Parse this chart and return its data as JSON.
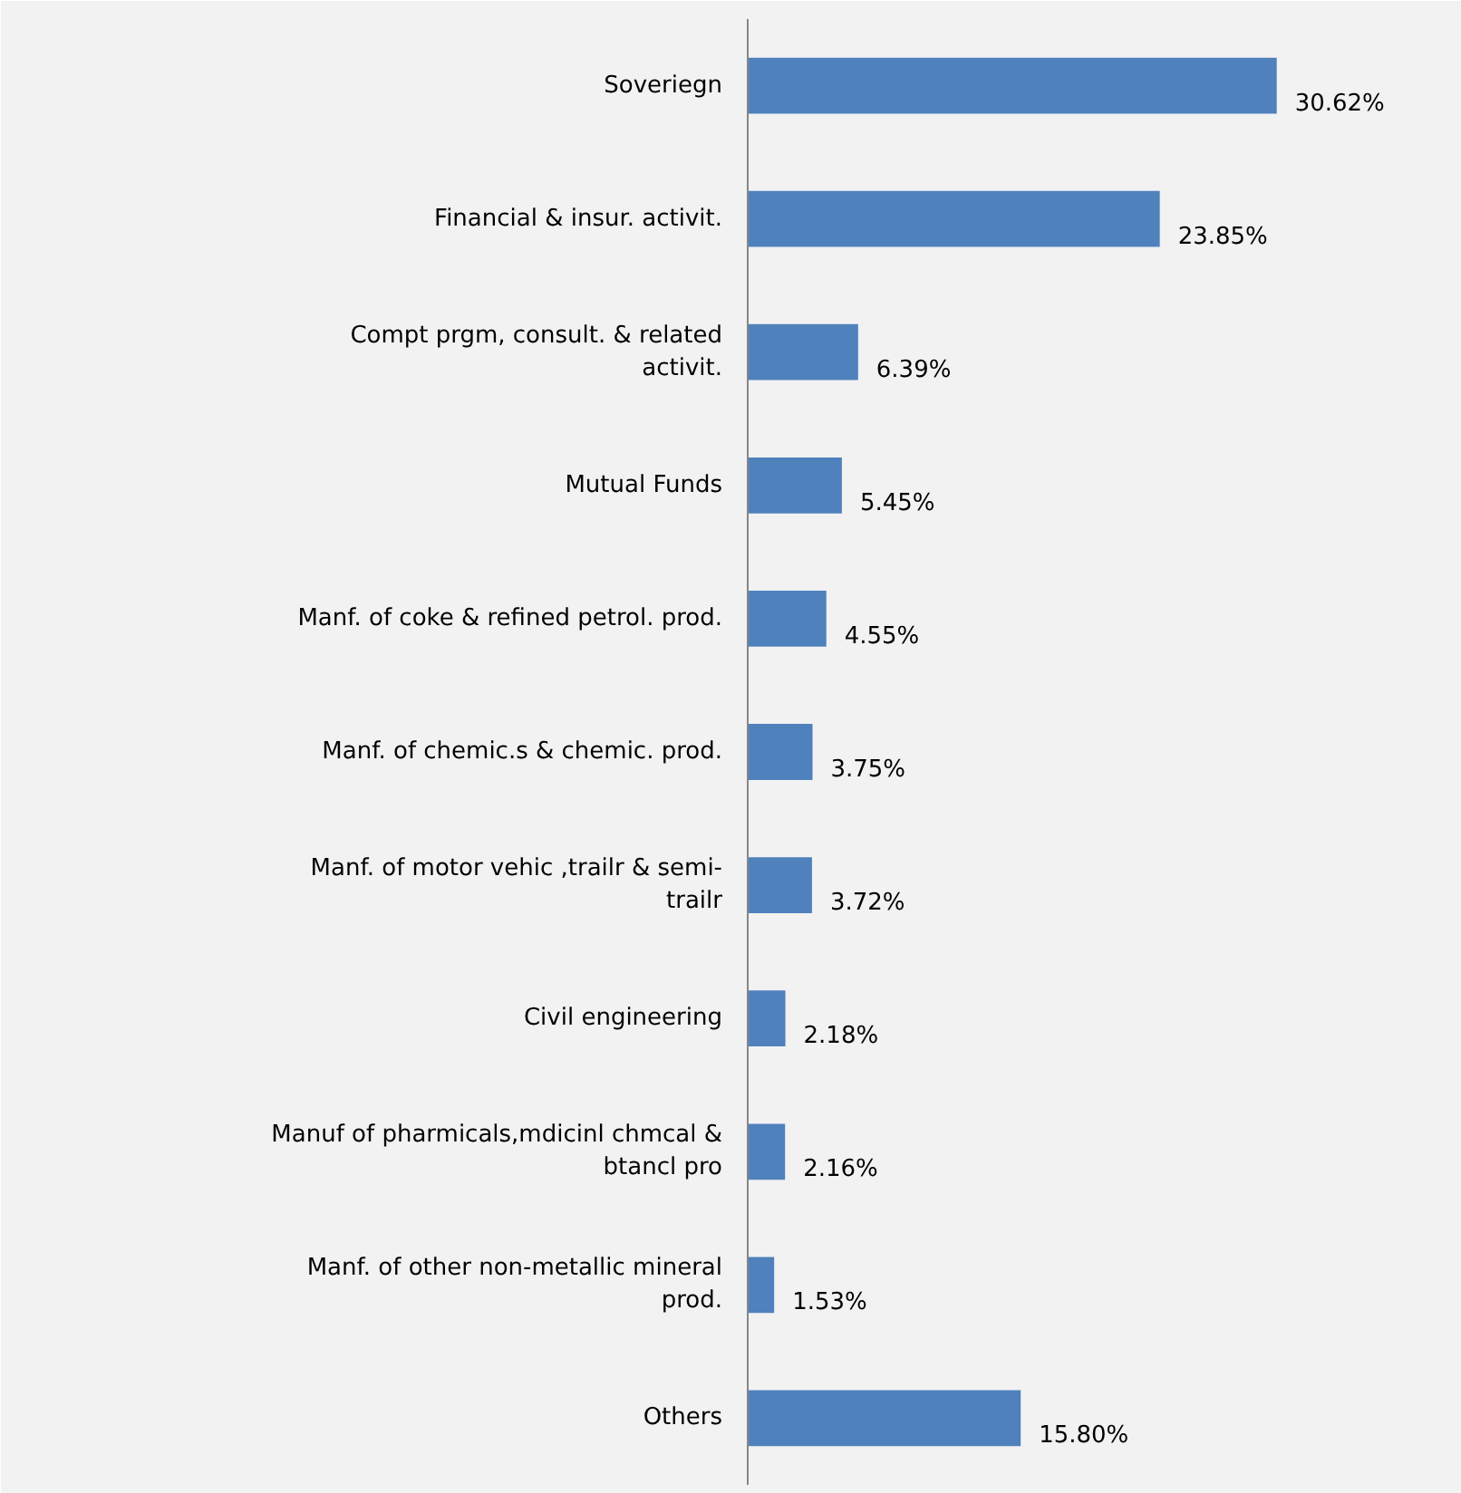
{
  "chart_data": {
    "type": "bar",
    "orientation": "horizontal",
    "categories": [
      "Soveriegn",
      "Financial & insur. activit.",
      "Compt prgm, consult. & related activit.",
      "Mutual Funds",
      "Manf. of coke & refined petrol. prod.",
      "Manf. of chemic.s & chemic. prod.",
      "Manf. of motor vehic ,trailr & semi-trailr",
      "Civil engineering",
      "Manuf of pharmicals,mdicinl chmcal & btancl pro",
      "Manf. of other non-metallic mineral prod.",
      "Others"
    ],
    "values": [
      30.62,
      23.85,
      6.39,
      5.45,
      4.55,
      3.75,
      3.72,
      2.18,
      2.16,
      1.53,
      15.8
    ],
    "value_labels": [
      "30.62%",
      "23.85%",
      "6.39%",
      "5.45%",
      "4.55%",
      "3.75%",
      "3.72%",
      "2.18%",
      "2.16%",
      "1.53%",
      "15.80%"
    ],
    "color": "#4f81bd"
  }
}
